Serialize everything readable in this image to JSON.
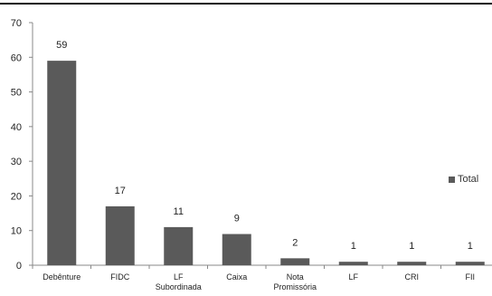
{
  "colors": {
    "bar": "#5a5a5a",
    "axis": "#888888",
    "text": "#222222"
  },
  "legend": {
    "label": "Total",
    "placement": "right"
  },
  "chart_data": {
    "type": "bar",
    "title": "",
    "xlabel": "",
    "ylabel": "",
    "ylim": [
      0,
      70
    ],
    "yticks": [
      0,
      10,
      20,
      30,
      40,
      50,
      60,
      70
    ],
    "grid": false,
    "categories": [
      [
        "Debênture"
      ],
      [
        "FIDC"
      ],
      [
        "LF",
        "Subordinada"
      ],
      [
        "Caixa"
      ],
      [
        "Nota",
        "Promissória"
      ],
      [
        "LF"
      ],
      [
        "CRI"
      ],
      [
        "FII"
      ]
    ],
    "series": [
      {
        "name": "Total",
        "values": [
          59,
          17,
          11,
          9,
          2,
          1,
          1,
          1
        ]
      }
    ]
  }
}
